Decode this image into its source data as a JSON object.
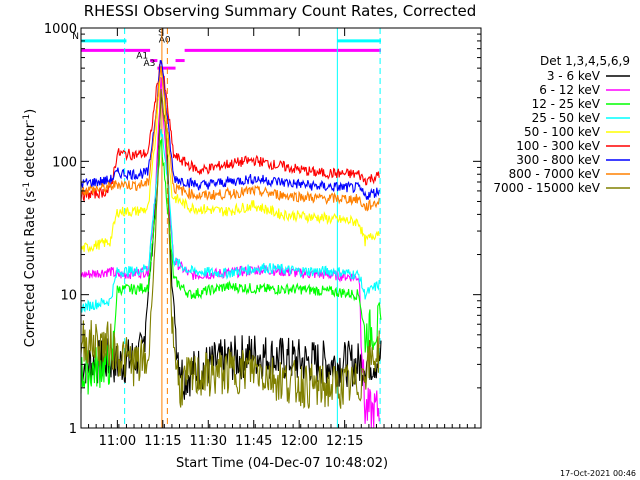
{
  "chart_data": {
    "type": "line",
    "title": "RHESSI Observing Summary Count Rates, Corrected",
    "xlabel": "Start Time (04-Dec-07 10:48:02)",
    "ylabel_main": "Corrected Count Rate (s",
    "ylabel_sup1": "-1",
    "ylabel_mid": " detector",
    "ylabel_sup2": "-1",
    "ylabel_end": ")",
    "yscale": "log",
    "ylim": [
      1,
      1000
    ],
    "xlim": [
      10.8,
      13.0
    ],
    "x_ticks": [
      {
        "x": 11.0,
        "label": "11:00"
      },
      {
        "x": 11.25,
        "label": "11:15"
      },
      {
        "x": 11.5,
        "label": "11:30"
      },
      {
        "x": 11.75,
        "label": "11:45"
      },
      {
        "x": 12.0,
        "label": "12:00"
      },
      {
        "x": 12.25,
        "label": "12:15"
      }
    ],
    "y_ticks": [
      {
        "y": 1,
        "label": "1"
      },
      {
        "y": 10,
        "label": "10"
      },
      {
        "y": 100,
        "label": "100"
      },
      {
        "y": 1000,
        "label": "1000"
      }
    ],
    "legend_title": "Det 1,3,4,5,6,9",
    "legend_position": "right",
    "series": [
      {
        "name": "3 - 6 keV",
        "color": "#000000",
        "points": [
          [
            10.8,
            3.0
          ],
          [
            10.96,
            3.2
          ],
          [
            11.0,
            3.0
          ],
          [
            11.06,
            3.2
          ],
          [
            11.14,
            3.6
          ],
          [
            11.2,
            30
          ],
          [
            11.24,
            300
          ],
          [
            11.27,
            180
          ],
          [
            11.3,
            12
          ],
          [
            11.33,
            4
          ],
          [
            11.36,
            2.4
          ],
          [
            11.45,
            2.8
          ],
          [
            11.6,
            3.2
          ],
          [
            11.75,
            3.6
          ],
          [
            11.9,
            3.3
          ],
          [
            12.1,
            3.1
          ],
          [
            12.33,
            3.0
          ],
          [
            12.39,
            3.2
          ],
          [
            12.45,
            3.3
          ]
        ]
      },
      {
        "name": "6 - 12 keV",
        "color": "#ff00ff",
        "points": [
          [
            10.8,
            14
          ],
          [
            10.96,
            15
          ],
          [
            11.0,
            14
          ],
          [
            11.1,
            14.5
          ],
          [
            11.17,
            15
          ],
          [
            11.21,
            60
          ],
          [
            11.24,
            420
          ],
          [
            11.28,
            60
          ],
          [
            11.31,
            18
          ],
          [
            11.4,
            14
          ],
          [
            11.6,
            14.5
          ],
          [
            11.8,
            15.5
          ],
          [
            12.0,
            14.5
          ],
          [
            12.2,
            14
          ],
          [
            12.33,
            13.5
          ],
          [
            12.36,
            1.4
          ],
          [
            12.4,
            1.3
          ],
          [
            12.44,
            1.4
          ]
        ]
      },
      {
        "name": "12 - 25 keV",
        "color": "#00ff00",
        "points": [
          [
            10.8,
            2.5
          ],
          [
            10.92,
            3
          ],
          [
            10.97,
            3
          ],
          [
            11.0,
            11
          ],
          [
            11.1,
            11
          ],
          [
            11.17,
            11.5
          ],
          [
            11.21,
            40
          ],
          [
            11.24,
            150
          ],
          [
            11.28,
            40
          ],
          [
            11.31,
            13
          ],
          [
            11.4,
            10
          ],
          [
            11.6,
            11.5
          ],
          [
            11.8,
            11
          ],
          [
            12.0,
            11
          ],
          [
            12.2,
            10.5
          ],
          [
            12.33,
            10
          ],
          [
            12.36,
            5
          ],
          [
            12.45,
            6
          ]
        ]
      },
      {
        "name": "25 - 50 keV",
        "color": "#00ffff",
        "points": [
          [
            10.8,
            8
          ],
          [
            10.96,
            9
          ],
          [
            11.0,
            15
          ],
          [
            11.1,
            15
          ],
          [
            11.17,
            16
          ],
          [
            11.21,
            60
          ],
          [
            11.24,
            180
          ],
          [
            11.28,
            70
          ],
          [
            11.31,
            18
          ],
          [
            11.4,
            15
          ],
          [
            11.6,
            14.5
          ],
          [
            11.8,
            16
          ],
          [
            12.0,
            15
          ],
          [
            12.2,
            15
          ],
          [
            12.33,
            14
          ],
          [
            12.36,
            10
          ],
          [
            12.44,
            12
          ]
        ]
      },
      {
        "name": "50 - 100 keV",
        "color": "#ffff00",
        "points": [
          [
            10.8,
            22
          ],
          [
            10.96,
            25
          ],
          [
            11.0,
            42
          ],
          [
            11.1,
            42
          ],
          [
            11.17,
            44
          ],
          [
            11.21,
            150
          ],
          [
            11.24,
            560
          ],
          [
            11.28,
            120
          ],
          [
            11.3,
            55
          ],
          [
            11.4,
            45
          ],
          [
            11.6,
            42
          ],
          [
            11.75,
            47
          ],
          [
            11.9,
            40
          ],
          [
            12.1,
            38
          ],
          [
            12.33,
            35
          ],
          [
            12.36,
            25
          ],
          [
            12.44,
            30
          ]
        ]
      },
      {
        "name": "100 - 300 keV",
        "color": "#ff0000",
        "points": [
          [
            10.8,
            55
          ],
          [
            10.96,
            60
          ],
          [
            11.0,
            115
          ],
          [
            11.1,
            112
          ],
          [
            11.17,
            115
          ],
          [
            11.21,
            300
          ],
          [
            11.24,
            600
          ],
          [
            11.28,
            230
          ],
          [
            11.31,
            110
          ],
          [
            11.45,
            85
          ],
          [
            11.6,
            95
          ],
          [
            11.75,
            102
          ],
          [
            11.9,
            92
          ],
          [
            12.1,
            82
          ],
          [
            12.33,
            80
          ],
          [
            12.36,
            72
          ],
          [
            12.44,
            78
          ]
        ]
      },
      {
        "name": "300 - 800 keV",
        "color": "#0000ff",
        "points": [
          [
            10.8,
            68
          ],
          [
            10.96,
            72
          ],
          [
            11.0,
            82
          ],
          [
            11.1,
            80
          ],
          [
            11.17,
            82
          ],
          [
            11.21,
            220
          ],
          [
            11.24,
            620
          ],
          [
            11.28,
            180
          ],
          [
            11.31,
            75
          ],
          [
            11.45,
            66
          ],
          [
            11.6,
            70
          ],
          [
            11.75,
            74
          ],
          [
            11.9,
            70
          ],
          [
            12.1,
            65
          ],
          [
            12.33,
            63
          ],
          [
            12.36,
            55
          ],
          [
            12.44,
            60
          ]
        ]
      },
      {
        "name": "800 - 7000 keV",
        "color": "#ff8000",
        "points": [
          [
            10.8,
            60
          ],
          [
            10.96,
            64
          ],
          [
            11.0,
            68
          ],
          [
            11.1,
            66
          ],
          [
            11.17,
            68
          ],
          [
            11.21,
            200
          ],
          [
            11.24,
            560
          ],
          [
            11.28,
            150
          ],
          [
            11.31,
            63
          ],
          [
            11.45,
            55
          ],
          [
            11.6,
            57
          ],
          [
            11.75,
            60
          ],
          [
            11.9,
            56
          ],
          [
            12.1,
            53
          ],
          [
            12.33,
            52
          ],
          [
            12.36,
            45
          ],
          [
            12.44,
            50
          ]
        ]
      },
      {
        "name": "7000 - 15000 keV",
        "color": "#808000",
        "points": [
          [
            10.8,
            4.5
          ],
          [
            10.96,
            4.2
          ],
          [
            11.0,
            3.6
          ],
          [
            11.1,
            3.0
          ],
          [
            11.17,
            3.2
          ],
          [
            11.21,
            28
          ],
          [
            11.24,
            320
          ],
          [
            11.27,
            150
          ],
          [
            11.3,
            6
          ],
          [
            11.34,
            2
          ],
          [
            11.4,
            2.4
          ],
          [
            11.6,
            2.6
          ],
          [
            11.75,
            2.8
          ],
          [
            11.9,
            2.3
          ],
          [
            12.1,
            2.0
          ],
          [
            12.33,
            2.1
          ],
          [
            12.36,
            2.8
          ],
          [
            12.44,
            3.8
          ]
        ]
      }
    ],
    "flags": [
      {
        "label": "N",
        "color": "#00ffff",
        "y": 800,
        "x_start": 10.8,
        "x_end": 11.05
      },
      {
        "label": "",
        "color": "#00ffff",
        "y": 800,
        "x_start": 12.21,
        "x_end": 12.45
      },
      {
        "label": "",
        "color": "#ff00ff",
        "y": 680,
        "x_start": 10.8,
        "x_end": 11.18
      },
      {
        "label": "",
        "color": "#ff00ff",
        "y": 680,
        "x_start": 11.37,
        "x_end": 12.45
      },
      {
        "label": "A1",
        "color": "#ff00ff",
        "y": 570,
        "x_start": 11.18,
        "x_end": 11.22
      },
      {
        "label": "A3",
        "color": "#ff00ff",
        "y": 500,
        "x_start": 11.22,
        "x_end": 11.32
      },
      {
        "label": "",
        "color": "#ff00ff",
        "y": 570,
        "x_start": 11.32,
        "x_end": 11.37
      },
      {
        "label": "A0",
        "color": "#ff00ff",
        "y": 750,
        "x_start": 11.26,
        "x_end": 11.26
      },
      {
        "label": "S",
        "color": "#ff8000",
        "y": 850,
        "x_start": 11.24,
        "x_end": 11.24
      }
    ],
    "vertical_lines": [
      {
        "x": 11.04,
        "color": "#00ffff",
        "style": "dashed"
      },
      {
        "x": 11.245,
        "color": "#ff8000",
        "style": "solid"
      },
      {
        "x": 11.275,
        "color": "#ff8000",
        "style": "dashed"
      },
      {
        "x": 12.21,
        "color": "#00ffff",
        "style": "solid"
      },
      {
        "x": 12.445,
        "color": "#00ffff",
        "style": "dashed"
      }
    ],
    "timestamp": "17-Oct-2021 00:46"
  }
}
